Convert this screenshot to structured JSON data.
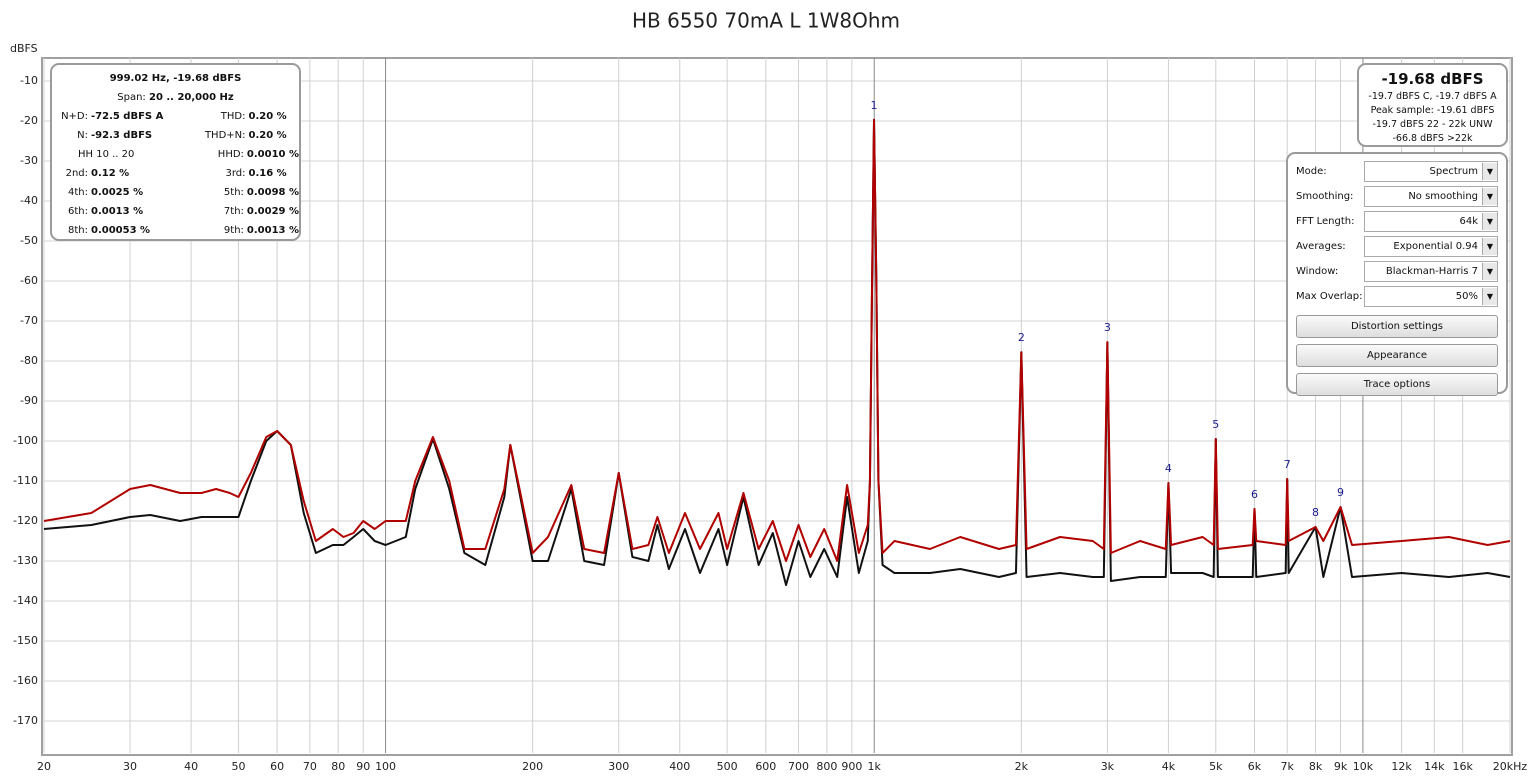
{
  "chart_data": {
    "type": "line",
    "title": "HB 6550 70mA L 1W8Ohm",
    "y_label": "dBFS",
    "x_scale": "log",
    "grid": true,
    "xlim": [
      20,
      20000
    ],
    "ylim": [
      -178,
      -5
    ],
    "xticks": [
      20,
      30,
      40,
      50,
      60,
      70,
      80,
      90,
      100,
      200,
      300,
      400,
      500,
      600,
      700,
      800,
      900,
      {
        "value": 1000,
        "label": "1k"
      },
      {
        "value": 2000,
        "label": "2k"
      },
      {
        "value": 3000,
        "label": "3k"
      },
      {
        "value": 4000,
        "label": "4k"
      },
      {
        "value": 5000,
        "label": "5k"
      },
      {
        "value": 6000,
        "label": "6k"
      },
      {
        "value": 7000,
        "label": "7k"
      },
      {
        "value": 8000,
        "label": "8k"
      },
      {
        "value": 9000,
        "label": "9k"
      },
      {
        "value": 10000,
        "label": "10k"
      },
      {
        "value": 12000,
        "label": "12k"
      },
      {
        "value": 14000,
        "label": "14k"
      },
      {
        "value": 16000,
        "label": "16k"
      },
      {
        "value": 20000,
        "label": "20kHz"
      }
    ],
    "yticks": [
      -10,
      -20,
      -30,
      -40,
      -50,
      -60,
      -70,
      -80,
      -90,
      -100,
      -110,
      -120,
      -130,
      -140,
      -150,
      -160,
      -170
    ],
    "x": [
      20,
      25,
      30,
      33,
      38,
      42,
      45,
      48,
      50,
      53,
      57,
      60,
      64,
      68,
      72,
      78,
      82,
      86,
      90,
      95,
      100,
      110,
      115,
      125,
      135,
      145,
      160,
      175,
      180,
      188,
      200,
      215,
      240,
      255,
      280,
      300,
      320,
      345,
      360,
      380,
      410,
      440,
      480,
      500,
      540,
      580,
      620,
      660,
      700,
      740,
      790,
      840,
      880,
      930,
      970,
      980,
      990,
      999,
      1010,
      1020,
      1040,
      1100,
      1300,
      1500,
      1800,
      1950,
      2000,
      2050,
      2400,
      2800,
      2950,
      3000,
      3050,
      3500,
      3950,
      4000,
      4050,
      4700,
      4950,
      5000,
      5050,
      5950,
      6000,
      6050,
      6950,
      7000,
      7050,
      8000,
      8300,
      9000,
      9500,
      12000,
      15000,
      18000,
      20000
    ],
    "series": [
      {
        "color": "#111111",
        "values": [
          -122,
          -121,
          -119,
          -118.5,
          -120,
          -119,
          -119,
          -119,
          -119,
          -110,
          -100,
          -97.5,
          -101,
          -118,
          -128,
          -126,
          -126,
          -124,
          -122,
          -125,
          -126,
          -124,
          -112,
          -99.5,
          -112,
          -128,
          -131,
          -114,
          -101,
          -113,
          -130,
          -130,
          -112,
          -130,
          -131,
          -108,
          -129,
          -130,
          -121,
          -132,
          -122,
          -133,
          -122,
          -131,
          -114,
          -131,
          -123,
          -136,
          -125,
          -134,
          -127,
          -134,
          -114,
          -133,
          -125,
          -110,
          -60,
          -19.7,
          -60,
          -110,
          -131,
          -133,
          -133,
          -132,
          -134,
          -133,
          -77.8,
          -134,
          -133,
          -134,
          -134,
          -75.3,
          -135,
          -134,
          -134,
          -110.5,
          -133,
          -133,
          -134,
          -99.5,
          -134,
          -134,
          -117,
          -134,
          -133,
          -109.5,
          -133,
          -121.5,
          -134,
          -116.5,
          -134,
          -133,
          -134,
          -133,
          -134
        ]
      },
      {
        "color": "#b00000",
        "values": [
          -120,
          -118,
          -112,
          -111,
          -113,
          -113,
          -112,
          -113,
          -114,
          -108,
          -99,
          -97.5,
          -101,
          -115,
          -125,
          -122,
          -124,
          -123,
          -120,
          -122,
          -120,
          -120,
          -110,
          -99,
          -110,
          -127,
          -127,
          -112,
          -101,
          -112,
          -128,
          -124,
          -111,
          -127,
          -128,
          -108,
          -127,
          -126,
          -119,
          -128,
          -118,
          -127,
          -118,
          -127,
          -113,
          -127,
          -120,
          -130,
          -121,
          -129,
          -122,
          -130,
          -111,
          -128,
          -121,
          -110,
          -60,
          -19.7,
          -60,
          -110,
          -128,
          -125,
          -127,
          -124,
          -127,
          -126,
          -77.8,
          -127,
          -124,
          -125,
          -127,
          -75.3,
          -128,
          -125,
          -127,
          -110.5,
          -126,
          -124,
          -126,
          -99.5,
          -127,
          -126,
          -117,
          -125,
          -126,
          -109.5,
          -125,
          -121.5,
          -125,
          -116.5,
          -126,
          -125,
          -124,
          -126,
          -125
        ]
      }
    ],
    "annotations": [
      {
        "text": "1",
        "x": 999,
        "y": -19.7
      },
      {
        "text": "2",
        "x": 2000,
        "y": -77.8
      },
      {
        "text": "3",
        "x": 3000,
        "y": -75.3
      },
      {
        "text": "4",
        "x": 4000,
        "y": -110.5
      },
      {
        "text": "5",
        "x": 5000,
        "y": -99.5
      },
      {
        "text": "6",
        "x": 6000,
        "y": -117
      },
      {
        "text": "7",
        "x": 7000,
        "y": -109.5
      },
      {
        "text": "8",
        "x": 8000,
        "y": -121.5
      },
      {
        "text": "9",
        "x": 9000,
        "y": -116.5
      }
    ]
  },
  "info_panel": {
    "header": "999.02 Hz, -19.68 dBFS",
    "span_label": "Span:",
    "span_value": "20 .. 20,000 Hz",
    "rows": [
      [
        {
          "label": "N+D:",
          "value": "-72.5 dBFS A"
        },
        {
          "label": "THD:",
          "value": "0.20 %"
        }
      ],
      [
        {
          "label": "N:",
          "value": "-92.3 dBFS"
        },
        {
          "label": "THD+N:",
          "value": "0.20 %"
        }
      ],
      [
        {
          "label": "HH 10 .. 20"
        },
        {
          "label": "HHD:",
          "value": "0.0010 %"
        }
      ],
      [
        {
          "label": "2nd:",
          "value": "0.12 %"
        },
        {
          "label": "3rd:",
          "value": "0.16 %"
        }
      ],
      [
        {
          "label": "4th:",
          "value": "0.0025 %"
        },
        {
          "label": "5th:",
          "value": "0.0098 %"
        }
      ],
      [
        {
          "label": "6th:",
          "value": "0.0013 %"
        },
        {
          "label": "7th:",
          "value": "0.0029 %"
        }
      ],
      [
        {
          "label": "8th:",
          "value": "0.00053 %"
        },
        {
          "label": "9th:",
          "value": "0.0013 %"
        }
      ]
    ]
  },
  "level_panel": {
    "value": "-19.68 dBFS",
    "lines": [
      "-19.7 dBFS C, -19.7 dBFS A",
      "Peak sample: -19.61 dBFS",
      "-19.7 dBFS 22 - 22k UNW",
      "-66.8 dBFS >22k"
    ]
  },
  "controls": {
    "fields": [
      {
        "label": "Mode:",
        "value": "Spectrum"
      },
      {
        "label": "Smoothing:",
        "value": "No  smoothing"
      },
      {
        "label": "FFT Length:",
        "value": "64k"
      },
      {
        "label": "Averages:",
        "value": "Exponential 0.94"
      },
      {
        "label": "Window:",
        "value": "Blackman-Harris 7"
      },
      {
        "label": "Max Overlap:",
        "value": "50%"
      }
    ],
    "buttons": [
      "Distortion settings",
      "Appearance",
      "Trace options"
    ]
  }
}
